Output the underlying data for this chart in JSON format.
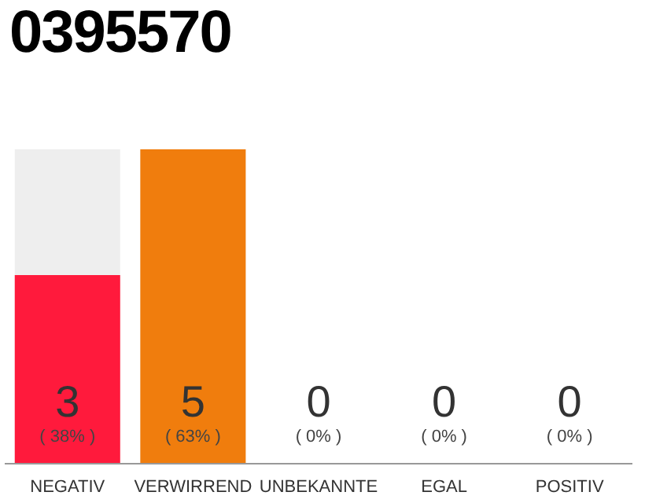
{
  "chart_data": {
    "type": "bar",
    "title": "0395570",
    "categories": [
      "NEGATIV",
      "VERWIRREND",
      "UNBEKANNTE",
      "EGAL",
      "POSITIV"
    ],
    "values": [
      3,
      5,
      0,
      0,
      0
    ],
    "colors": [
      "#ff1a3c",
      "#f07d0d",
      "#d0d0d0",
      "#d0d0d0",
      "#d0d0d0"
    ],
    "ylim": [
      0,
      5
    ],
    "tick_labels": "x",
    "grid": false,
    "legend": false,
    "data_labels": true,
    "annotations": [
      "( 38% )",
      "( 63% )",
      "( 0% )",
      "( 0% )",
      "( 0% )"
    ]
  }
}
